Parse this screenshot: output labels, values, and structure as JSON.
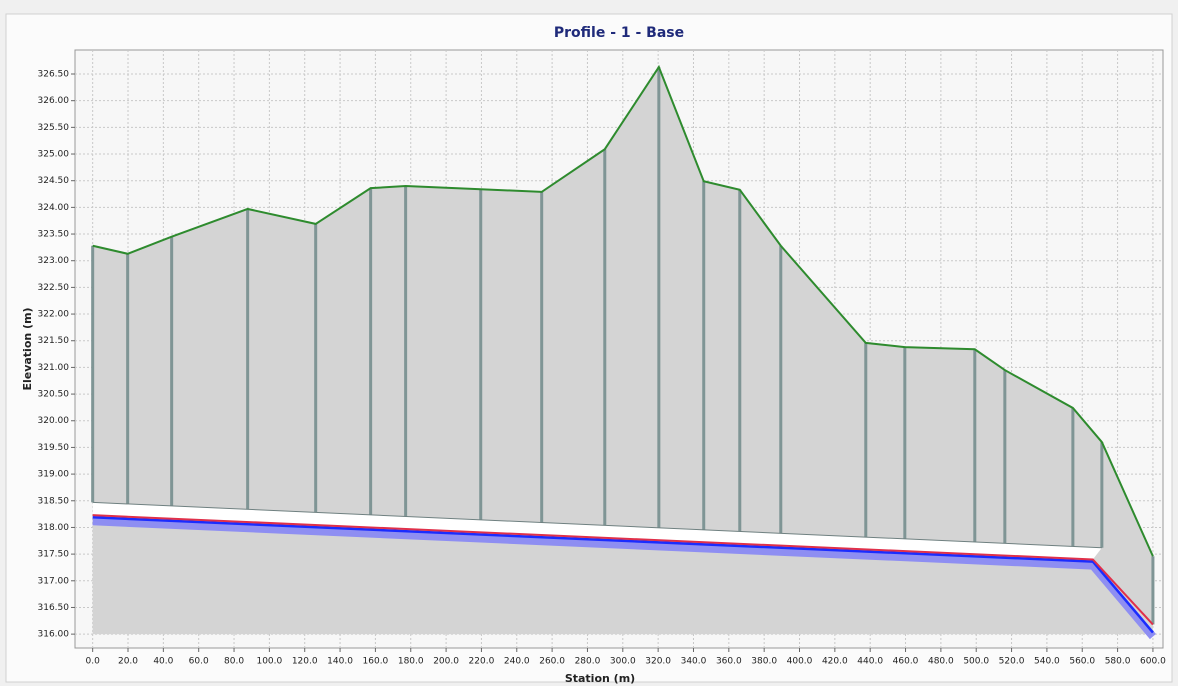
{
  "chart_data": {
    "type": "profile",
    "title": "Profile - 1 - Base",
    "xlabel": "Station (m)",
    "ylabel": "Elevation (m)",
    "xlim": [
      -10,
      605.7
    ],
    "ylim": [
      315.74,
      326.95
    ],
    "grid": true,
    "xticks": [
      {
        "value": 0,
        "label": "0.0"
      },
      {
        "value": 20,
        "label": "20.0"
      },
      {
        "value": 40,
        "label": "40.0"
      },
      {
        "value": 60,
        "label": "60.0"
      },
      {
        "value": 80,
        "label": "80.0"
      },
      {
        "value": 100,
        "label": "100.0"
      },
      {
        "value": 120,
        "label": "120.0"
      },
      {
        "value": 140,
        "label": "140.0"
      },
      {
        "value": 160,
        "label": "160.0"
      },
      {
        "value": 180,
        "label": "180.0"
      },
      {
        "value": 200,
        "label": "200.0"
      },
      {
        "value": 220,
        "label": "220.0"
      },
      {
        "value": 240,
        "label": "240.0"
      },
      {
        "value": 260,
        "label": "260.0"
      },
      {
        "value": 280,
        "label": "280.0"
      },
      {
        "value": 300,
        "label": "300.0"
      },
      {
        "value": 320,
        "label": "320.0"
      },
      {
        "value": 340,
        "label": "340.0"
      },
      {
        "value": 360,
        "label": "360.0"
      },
      {
        "value": 380,
        "label": "380.0"
      },
      {
        "value": 400,
        "label": "400.0"
      },
      {
        "value": 420,
        "label": "420.0"
      },
      {
        "value": 440,
        "label": "440.0"
      },
      {
        "value": 460,
        "label": "460.0"
      },
      {
        "value": 480,
        "label": "480.0"
      },
      {
        "value": 500,
        "label": "500.0"
      },
      {
        "value": 520,
        "label": "520.0"
      },
      {
        "value": 540,
        "label": "540.0"
      },
      {
        "value": 560,
        "label": "560.0"
      },
      {
        "value": 580,
        "label": "580.0"
      },
      {
        "value": 600,
        "label": "600.0"
      }
    ],
    "yticks": [
      {
        "value": 316,
        "label": "316.00"
      },
      {
        "value": 316.5,
        "label": "316.50"
      },
      {
        "value": 317,
        "label": "317.00"
      },
      {
        "value": 317.5,
        "label": "317.50"
      },
      {
        "value": 318,
        "label": "318.00"
      },
      {
        "value": 318.5,
        "label": "318.50"
      },
      {
        "value": 319,
        "label": "319.00"
      },
      {
        "value": 319.5,
        "label": "319.50"
      },
      {
        "value": 320,
        "label": "320.00"
      },
      {
        "value": 320.5,
        "label": "320.50"
      },
      {
        "value": 321,
        "label": "321.00"
      },
      {
        "value": 321.5,
        "label": "321.50"
      },
      {
        "value": 322,
        "label": "322.00"
      },
      {
        "value": 322.5,
        "label": "322.50"
      },
      {
        "value": 323,
        "label": "323.00"
      },
      {
        "value": 323.5,
        "label": "323.50"
      },
      {
        "value": 324,
        "label": "324.00"
      },
      {
        "value": 324.5,
        "label": "324.50"
      },
      {
        "value": 325,
        "label": "325.00"
      },
      {
        "value": 325.5,
        "label": "325.50"
      },
      {
        "value": 326,
        "label": "326.00"
      },
      {
        "value": 326.5,
        "label": "326.50"
      }
    ],
    "series": [
      {
        "color": "#2e8b2e",
        "x": [
          0,
          19.8,
          44.7,
          87.7,
          126.2,
          157.3,
          177.1,
          219.6,
          254.1,
          289.8,
          320.4,
          345.8,
          366.2,
          389.4,
          437.5,
          459.6,
          499.2,
          516.2,
          554.7,
          571.1,
          600
        ],
        "values": [
          323.28,
          323.13,
          323.45,
          323.97,
          323.69,
          324.36,
          324.4,
          324.34,
          324.29,
          325.09,
          326.63,
          324.49,
          324.33,
          323.28,
          321.46,
          321.38,
          321.34,
          320.95,
          320.24,
          319.6,
          317.46
        ]
      },
      {
        "color": "#6f8080",
        "x": [
          0,
          571.1
        ],
        "values": [
          318.47,
          317.62
        ]
      },
      {
        "color": "#e0304a",
        "x": [
          0,
          566,
          600
        ],
        "values": [
          318.23,
          317.4,
          316.18
        ]
      },
      {
        "color": "#1a2cff",
        "x": [
          0,
          566,
          600
        ],
        "values": [
          318.19,
          317.36,
          316.03
        ]
      }
    ]
  }
}
